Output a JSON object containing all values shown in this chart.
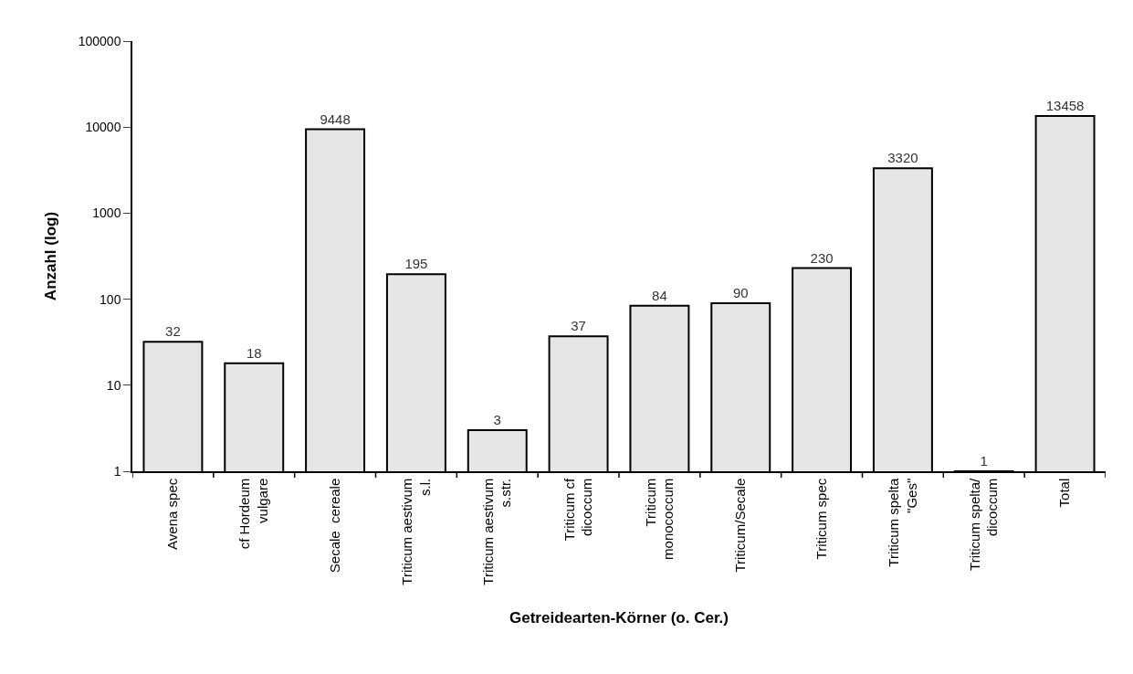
{
  "chart_data": {
    "type": "bar",
    "xlabel": "Getreidearten-Körner (o. Cer.)",
    "ylabel": "Anzahl (log)",
    "categories": [
      "Avena spec",
      "cf Hordeum\nvulgare",
      "Secale  cereale",
      "Triticum aestivum\ns.l.",
      "Triticum aestivum\ns.str.",
      "Triticum cf\ndicoccum",
      "Triticum\nmonococcum",
      "Triticum/Secale",
      "Triticum spec",
      "Triticum spelta\n\"Ges\"",
      "Triticum spelta/\ndicoccum",
      "Total"
    ],
    "values": [
      32,
      18,
      9448,
      195,
      3,
      37,
      84,
      90,
      230,
      3320,
      1,
      13458
    ],
    "color": "#e6e6e6",
    "log": true,
    "ylim": [
      1,
      100000
    ],
    "yticks": [
      1,
      10,
      100,
      1000,
      10000,
      100000
    ],
    "data_labels": true
  }
}
